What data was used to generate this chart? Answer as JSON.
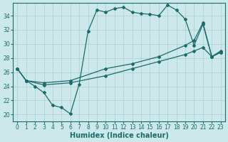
{
  "xlabel": "Humidex (Indice chaleur)",
  "xlim": [
    -0.5,
    23.5
  ],
  "ylim": [
    19.0,
    35.8
  ],
  "yticks": [
    20,
    22,
    24,
    26,
    28,
    30,
    32,
    34
  ],
  "xticks": [
    0,
    1,
    2,
    3,
    4,
    5,
    6,
    7,
    8,
    9,
    10,
    11,
    12,
    13,
    14,
    15,
    16,
    17,
    18,
    19,
    20,
    21,
    22,
    23
  ],
  "bg_color": "#cce8eb",
  "line_color": "#1a6b6b",
  "grid_color": "#aacdd4",
  "curve1_x": [
    0,
    1,
    2,
    3,
    4,
    5,
    6,
    7,
    8,
    9,
    10,
    11,
    12,
    13,
    14,
    15,
    16,
    17,
    18,
    19,
    20,
    21,
    22,
    23
  ],
  "curve1_y": [
    26.5,
    24.8,
    24.0,
    23.1,
    21.3,
    21.0,
    20.1,
    24.3,
    31.8,
    34.8,
    34.5,
    35.0,
    35.2,
    34.5,
    34.3,
    34.2,
    34.0,
    35.5,
    34.8,
    33.5,
    29.8,
    32.8,
    28.2,
    29.0
  ],
  "curve2_x": [
    0,
    1,
    3,
    6,
    10,
    13,
    16,
    19,
    20,
    21,
    22,
    23
  ],
  "curve2_y": [
    26.5,
    24.8,
    24.5,
    24.8,
    26.5,
    27.2,
    28.2,
    29.8,
    30.5,
    33.0,
    28.2,
    28.8
  ],
  "curve3_x": [
    0,
    1,
    3,
    6,
    10,
    13,
    16,
    19,
    20,
    21,
    22,
    23
  ],
  "curve3_y": [
    26.5,
    24.8,
    24.2,
    24.5,
    25.5,
    26.5,
    27.5,
    28.5,
    29.0,
    29.5,
    28.2,
    28.8
  ]
}
